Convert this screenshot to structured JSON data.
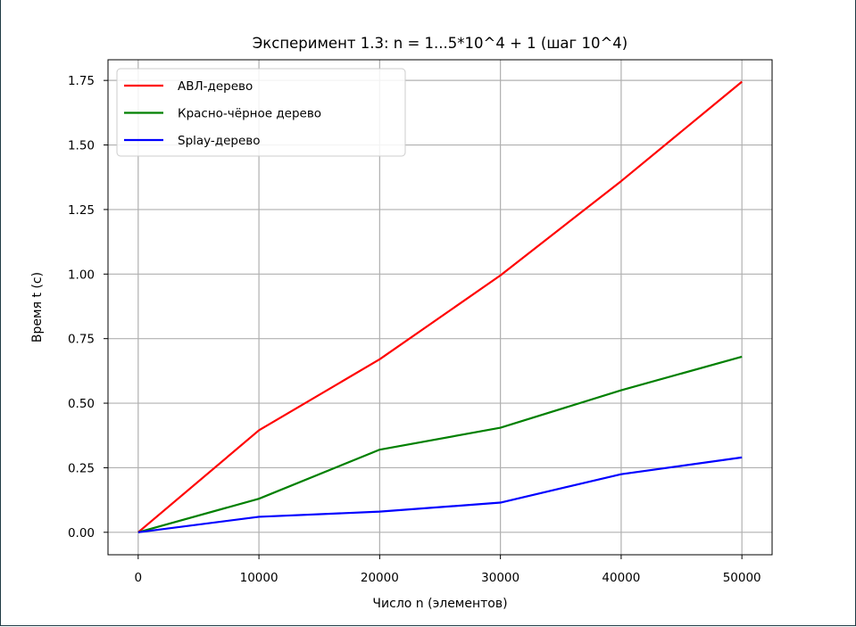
{
  "chart_data": {
    "type": "line",
    "title": "Эксперимент 1.3: n = 1...5*10^4 + 1 (шаг 10^4)",
    "xlabel": "Число n (элементов)",
    "ylabel": "Время t (с)",
    "x": [
      1,
      10001,
      20001,
      30001,
      40001,
      50001
    ],
    "xticks": [
      0,
      10000,
      20000,
      30000,
      40000,
      50000
    ],
    "xtick_labels": [
      "0",
      "10000",
      "20000",
      "30000",
      "40000",
      "50000"
    ],
    "yticks": [
      0,
      0.25,
      0.5,
      0.75,
      1.0,
      1.25,
      1.5,
      1.75
    ],
    "ytick_labels": [
      "0.00",
      "0.25",
      "0.50",
      "0.75",
      "1.00",
      "1.25",
      "1.50",
      "1.75"
    ],
    "xlim": [
      -2500,
      52500
    ],
    "ylim": [
      -0.087,
      1.83
    ],
    "grid": true,
    "legend_position": "upper-left",
    "series": [
      {
        "name": "АВЛ-дерево",
        "color": "#ff0000",
        "values": [
          0.0,
          0.395,
          0.67,
          0.995,
          1.36,
          1.745
        ]
      },
      {
        "name": "Красно-чёрное дерево",
        "color": "#008000",
        "values": [
          0.0,
          0.13,
          0.32,
          0.405,
          0.55,
          0.68
        ]
      },
      {
        "name": "Splay-дерево",
        "color": "#0000ff",
        "values": [
          0.0,
          0.06,
          0.08,
          0.115,
          0.225,
          0.29
        ]
      }
    ]
  }
}
